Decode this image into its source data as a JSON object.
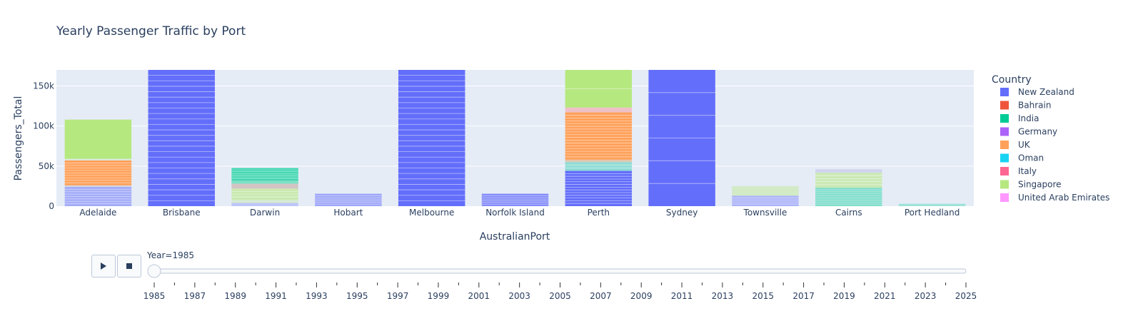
{
  "chart_data": {
    "type": "bar",
    "barmode": "stack",
    "title": "Yearly Passenger Traffic by Port",
    "xlabel": "AustralianPort",
    "ylabel": "Passengers_Total",
    "ylim": [
      0,
      170000
    ],
    "y_ticks": [
      0,
      50000,
      100000,
      150000
    ],
    "y_tick_labels": [
      "0",
      "50k",
      "100k",
      "150k"
    ],
    "grid": true,
    "legend_title": "Country",
    "legend_position": "right",
    "categories": [
      "Adelaide",
      "Brisbane",
      "Darwin",
      "Hobart",
      "Melbourne",
      "Norfolk Island",
      "Perth",
      "Sydney",
      "Townsville",
      "Cairns",
      "Port Hedland"
    ],
    "series": [
      {
        "name": "New Zealand",
        "color": "#636efa"
      },
      {
        "name": "Bahrain",
        "color": "#EF553B"
      },
      {
        "name": "India",
        "color": "#00cc96"
      },
      {
        "name": "Germany",
        "color": "#ab63fa"
      },
      {
        "name": "UK",
        "color": "#FFA15A"
      },
      {
        "name": "Oman",
        "color": "#19d3f3"
      },
      {
        "name": "Italy",
        "color": "#FF6692"
      },
      {
        "name": "Singapore",
        "color": "#B6E880"
      },
      {
        "name": "United Arab Emirates",
        "color": "#FF97FF"
      }
    ],
    "stacks": [
      {
        "category": "Adelaide",
        "segments": [
          {
            "color": "#636efa",
            "value": 24000,
            "opacity": 0.5,
            "lines": 7
          },
          {
            "color": "#d0d0d8",
            "value": 2000,
            "opacity": 0.8,
            "lines": 0
          },
          {
            "color": "#FFA15A",
            "value": 31000,
            "opacity": 1,
            "lines": 9
          },
          {
            "color": "#d8e8d8",
            "value": 2000,
            "opacity": 0.8,
            "lines": 0
          },
          {
            "color": "#B6E880",
            "value": 49000,
            "opacity": 1,
            "lines": 0
          }
        ]
      },
      {
        "category": "Brisbane",
        "segments": [
          {
            "color": "#636efa",
            "value": 170000,
            "opacity": 1,
            "lines": 24
          }
        ]
      },
      {
        "category": "Darwin",
        "segments": [
          {
            "color": "#636efa",
            "value": 4000,
            "opacity": 0.3,
            "lines": 0
          },
          {
            "color": "#B6E880",
            "value": 4000,
            "opacity": 0.3,
            "lines": 0
          },
          {
            "color": "#B6E880",
            "value": 14000,
            "opacity": 0.6,
            "lines": 3
          },
          {
            "color": "#d3c4c4",
            "value": 6000,
            "opacity": 1,
            "lines": 0
          },
          {
            "color": "#7de0c4",
            "value": 4000,
            "opacity": 1,
            "lines": 0
          },
          {
            "color": "#00cc96",
            "value": 15500,
            "opacity": 0.75,
            "lines": 6
          }
        ]
      },
      {
        "category": "Hobart",
        "segments": [
          {
            "color": "#636efa",
            "value": 15500,
            "opacity": 0.55,
            "lines": 5
          }
        ]
      },
      {
        "category": "Melbourne",
        "segments": [
          {
            "color": "#636efa",
            "value": 170000,
            "opacity": 1,
            "lines": 24
          }
        ]
      },
      {
        "category": "Norfolk Island",
        "segments": [
          {
            "color": "#636efa",
            "value": 15500,
            "opacity": 0.75,
            "lines": 5
          }
        ]
      },
      {
        "category": "Perth",
        "segments": [
          {
            "color": "#636efa",
            "value": 44000,
            "opacity": 1,
            "lines": 12
          },
          {
            "color": "#7fd8d0",
            "value": 11000,
            "opacity": 0.85,
            "lines": 2
          },
          {
            "color": "#e0c8b0",
            "value": 3000,
            "opacity": 1,
            "lines": 0
          },
          {
            "color": "#FFA15A",
            "value": 59000,
            "opacity": 1,
            "lines": 16
          },
          {
            "color": "#f0c0c8",
            "value": 6000,
            "opacity": 1,
            "lines": 0
          },
          {
            "color": "#B6E880",
            "value": 47000,
            "opacity": 1,
            "lines": 1
          }
        ]
      },
      {
        "category": "Sydney",
        "segments": [
          {
            "color": "#636efa",
            "value": 170000,
            "opacity": 1,
            "lines": 5
          }
        ]
      },
      {
        "category": "Townsville",
        "segments": [
          {
            "color": "#636efa",
            "value": 13000,
            "opacity": 0.45,
            "lines": 4
          },
          {
            "color": "#B6E880",
            "value": 12000,
            "opacity": 0.4,
            "lines": 0
          }
        ]
      },
      {
        "category": "Cairns",
        "segments": [
          {
            "color": "#00cc96",
            "value": 23000,
            "opacity": 0.45,
            "lines": 8
          },
          {
            "color": "#B6E880",
            "value": 19000,
            "opacity": 0.55,
            "lines": 4
          },
          {
            "color": "#d0d4f0",
            "value": 4000,
            "opacity": 1,
            "lines": 0
          }
        ]
      },
      {
        "category": "Port Hedland",
        "segments": [
          {
            "color": "#00cc96",
            "value": 3000,
            "opacity": 0.3,
            "lines": 0
          }
        ]
      }
    ]
  },
  "slider": {
    "current_label": "Year=1985",
    "current_year": 1985,
    "min_year": 1985,
    "max_year": 2025,
    "tick_labels": [
      "1985",
      "1987",
      "1989",
      "1991",
      "1993",
      "1995",
      "1997",
      "1999",
      "2001",
      "2003",
      "2005",
      "2007",
      "2009",
      "2011",
      "2013",
      "2015",
      "2017",
      "2019",
      "2021",
      "2023",
      "2025"
    ]
  }
}
